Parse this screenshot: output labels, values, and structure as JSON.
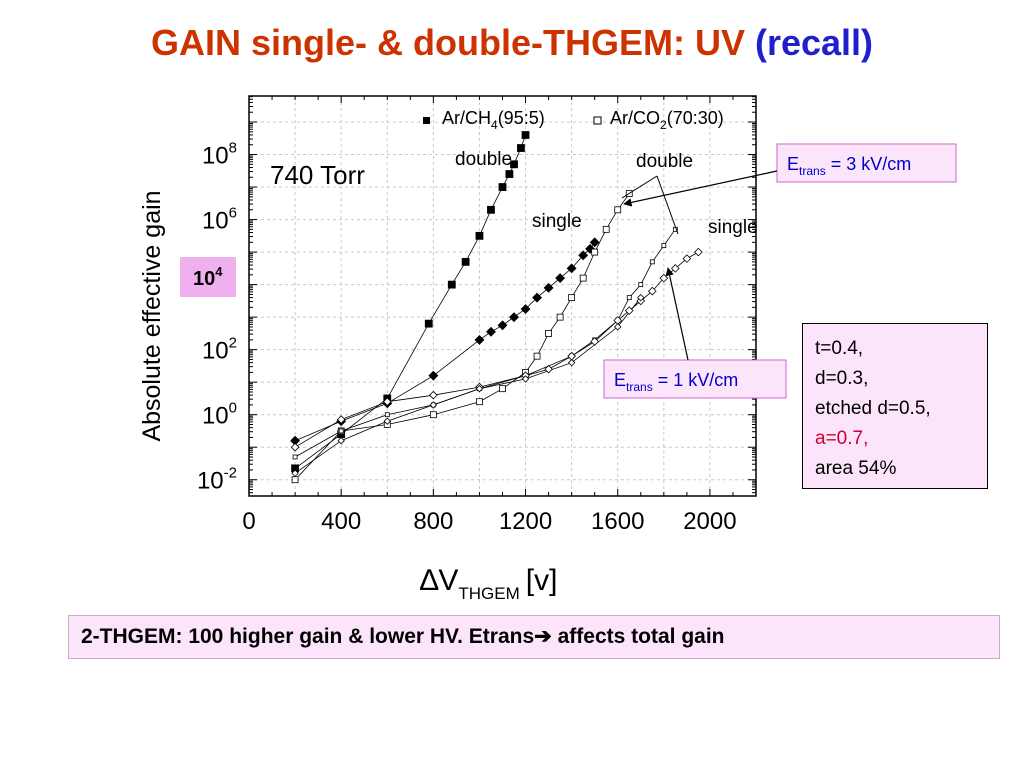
{
  "slide": {
    "title_main": "GAIN single- & double-THGEM: UV",
    "title_recall": "(recall)",
    "conclusion": "2-THGEM: 100 higher gain & lower HV. Etrans",
    "conclusion_arrow": "➔",
    "conclusion_end": "affects total gain"
  },
  "info_box": {
    "lines": [
      "t=0.4,",
      "d=0.3,",
      "etched d=0.5,",
      "a=0.7,",
      "area 54%"
    ],
    "highlight_color": "#cc0033"
  },
  "colors": {
    "title_red": "#cc3300",
    "title_blue": "#1f1fcc",
    "box_fill": "#fce4fa",
    "callout_border": "#cc66cc",
    "callout_text": "#0000cc"
  },
  "chart_data": {
    "type": "scatter",
    "title": "",
    "xlabel_delta": "∆",
    "xlabel_main": "V",
    "xlabel_sub": "THGEM",
    "xlabel_unit": "[v]",
    "ylabel": "Absolute effective gain",
    "xlim": [
      0,
      2200
    ],
    "ylim_log10": [
      -2.5,
      9.8
    ],
    "yscale": "log",
    "x_ticks": [
      0,
      400,
      800,
      1200,
      1600,
      2000
    ],
    "y_ticks": [
      {
        "base": "10",
        "exp": "8",
        "log10": 8
      },
      {
        "base": "10",
        "exp": "6",
        "log10": 6
      },
      {
        "base": "10",
        "exp": "2",
        "log10": 2
      },
      {
        "base": "10",
        "exp": "0",
        "log10": 0
      },
      {
        "base": "10",
        "exp": "-2",
        "log10": -2
      }
    ],
    "highlight_tick": {
      "base": "10",
      "exp": "4",
      "log10": 4
    },
    "annotation_pressure": "740 Torr",
    "legend_placement": "top",
    "legend": [
      {
        "name_pre": "Ar/CH",
        "name_sub": "4",
        "name_post": "(95:5)",
        "marker": "filled-square"
      },
      {
        "name_pre": "Ar/CO",
        "name_sub": "2",
        "name_post": "(70:30)",
        "marker": "open-square"
      }
    ],
    "series_labels": {
      "ch4_double": "double",
      "ch4_single": "single",
      "co2_double": "double",
      "co2_single": "single"
    },
    "callouts": [
      {
        "text_pre": "E",
        "text_sub": "trans",
        "text_post": " = 3 kV/cm"
      },
      {
        "text_pre": "E",
        "text_sub": "trans",
        "text_post": " = 1 kV/cm"
      }
    ],
    "series": [
      {
        "key": "ch4_double",
        "marker": "filled-square",
        "size": 7,
        "x": [
          200,
          400,
          600,
          780,
          880,
          940,
          1000,
          1050,
          1100,
          1130,
          1150,
          1180,
          1200
        ],
        "y_log10": [
          -1.65,
          -0.6,
          0.5,
          2.8,
          4.0,
          4.7,
          5.5,
          6.3,
          7.0,
          7.4,
          7.7,
          8.2,
          8.6
        ]
      },
      {
        "key": "ch4_single",
        "marker": "filled-diamond",
        "size": 7,
        "x": [
          200,
          400,
          600,
          800,
          1000,
          1050,
          1100,
          1150,
          1200,
          1250,
          1300,
          1350,
          1400,
          1450,
          1480,
          1500
        ],
        "y_log10": [
          -0.8,
          -0.2,
          0.35,
          1.2,
          2.3,
          2.55,
          2.75,
          3.0,
          3.25,
          3.6,
          3.9,
          4.2,
          4.5,
          4.9,
          5.1,
          5.3
        ]
      },
      {
        "key": "co2_double_e3",
        "marker": "open-square",
        "size": 6,
        "x": [
          200,
          400,
          600,
          800,
          1000,
          1100,
          1200,
          1250,
          1300,
          1350,
          1400,
          1450,
          1500,
          1550,
          1600,
          1650
        ],
        "y_log10": [
          -2.0,
          -0.5,
          -0.3,
          0.0,
          0.4,
          0.8,
          1.3,
          1.8,
          2.5,
          3.0,
          3.6,
          4.2,
          5.0,
          5.7,
          6.3,
          6.8
        ]
      },
      {
        "key": "co2_double_e1",
        "marker": "open-square",
        "size": 4,
        "x": [
          200,
          400,
          600,
          800,
          1000,
          1200,
          1400,
          1500,
          1600,
          1650,
          1700,
          1750,
          1800,
          1850
        ],
        "y_log10": [
          -1.3,
          -0.5,
          0.0,
          0.3,
          0.8,
          1.2,
          1.8,
          2.3,
          2.9,
          3.6,
          4.0,
          4.7,
          5.2,
          5.7
        ]
      },
      {
        "key": "co2_single_e3",
        "marker": "open-diamond",
        "size": 6,
        "x": [
          200,
          400,
          600,
          800,
          1000,
          1200,
          1300,
          1400,
          1500,
          1600,
          1650,
          1700,
          1750,
          1800,
          1850,
          1900,
          1950
        ],
        "y_log10": [
          -1.0,
          -0.15,
          0.4,
          0.6,
          0.85,
          1.2,
          1.4,
          1.8,
          2.25,
          2.9,
          3.2,
          3.5,
          3.8,
          4.2,
          4.5,
          4.8,
          5.0
        ]
      },
      {
        "key": "co2_single_e1",
        "marker": "open-diamond",
        "size": 5,
        "x": [
          200,
          400,
          600,
          800,
          1000,
          1200,
          1400,
          1600,
          1700
        ],
        "y_log10": [
          -1.8,
          -0.8,
          -0.2,
          0.3,
          0.8,
          1.1,
          1.6,
          2.7,
          3.6
        ]
      }
    ]
  }
}
